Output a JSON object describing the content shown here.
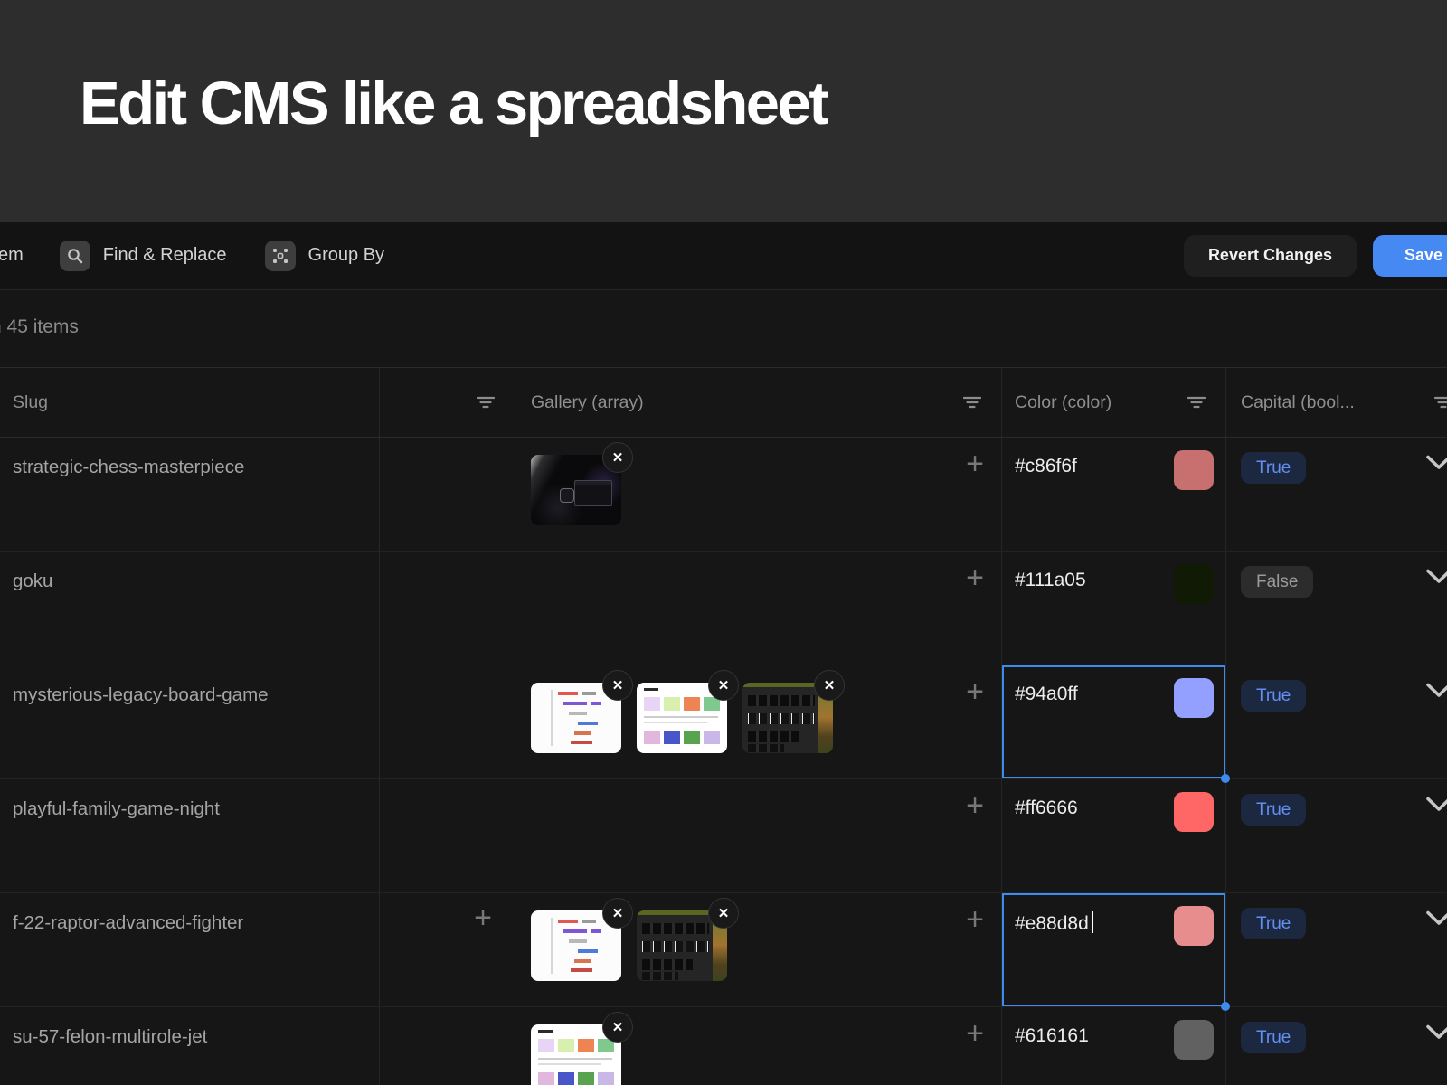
{
  "banner": {
    "title": "Edit CMS like a spreadsheet"
  },
  "toolbar": {
    "partial_item_label": "em",
    "find_replace_label": "Find & Replace",
    "group_by_label": "Group By",
    "revert_label": "Revert Changes",
    "save_label": "Save"
  },
  "meta": {
    "count_prefix": "n",
    "count_text": "45 items"
  },
  "colors": {
    "accent_blue": "#3e8bf0",
    "save_button": "#4789f2",
    "true_pill_bg": "#1c2840",
    "true_pill_text": "#628ff1",
    "false_pill_bg": "#2c2c2c",
    "false_pill_text": "#9a9a9a",
    "banner_bg": "#2d2d2d",
    "page_bg": "#161616"
  },
  "table": {
    "columns": [
      {
        "id": "slug",
        "label": "Slug",
        "has_filter": false
      },
      {
        "id": "extra",
        "label": "",
        "has_filter": true
      },
      {
        "id": "gallery",
        "label": "Gallery (array)",
        "has_filter": true
      },
      {
        "id": "color",
        "label": "Color (color)",
        "has_filter": true
      },
      {
        "id": "capital",
        "label": "Capital (bool...",
        "has_filter": true
      }
    ],
    "rows": [
      {
        "slug": "strategic-chess-masterpiece",
        "extra_add": false,
        "gallery": [
          "space-dark"
        ],
        "gallery_add": true,
        "color": "#c86f6f",
        "color_state": "normal",
        "capital": "True",
        "capital_on": true
      },
      {
        "slug": "goku",
        "extra_add": false,
        "gallery": [],
        "gallery_add": true,
        "color": "#111a05",
        "color_state": "normal",
        "capital": "False",
        "capital_on": false
      },
      {
        "slug": "mysterious-legacy-board-game",
        "extra_add": false,
        "gallery": [
          "code-light",
          "cards-light",
          "editor-dark"
        ],
        "gallery_add": true,
        "color": "#94a0ff",
        "color_state": "selected",
        "capital": "True",
        "capital_on": true
      },
      {
        "slug": "playful-family-game-night",
        "extra_add": false,
        "gallery": [],
        "gallery_add": true,
        "color": "#ff6666",
        "color_state": "normal",
        "capital": "True",
        "capital_on": true
      },
      {
        "slug": "f-22-raptor-advanced-fighter",
        "extra_add": true,
        "gallery": [
          "code-light",
          "editor-dark"
        ],
        "gallery_add": true,
        "color": "#e88d8d",
        "color_state": "editing",
        "capital": "True",
        "capital_on": true
      },
      {
        "slug": "su-57-felon-multirole-jet",
        "extra_add": false,
        "gallery": [
          "cards-light"
        ],
        "gallery_add": true,
        "color": "#616161",
        "color_state": "normal",
        "capital": "True",
        "capital_on": true
      }
    ]
  }
}
